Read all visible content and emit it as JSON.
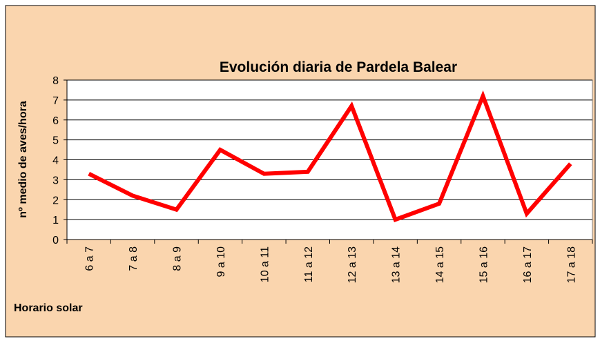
{
  "chart_data": {
    "type": "line",
    "title": "Evolución diaria de Pardela Balear",
    "y_label": "nº medio de aves/hora",
    "x_label": "Horario solar",
    "categories": [
      "6 a 7",
      "7 a 8",
      "8 a 9",
      "9 a 10",
      "10 a 11",
      "11 a 12",
      "12 a 13",
      "13 a 14",
      "14 a 15",
      "15 a 16",
      "16 a 17",
      "17 a 18"
    ],
    "series": [
      {
        "name": null,
        "color": "#ff0000",
        "values": [
          3.3,
          2.2,
          1.5,
          4.5,
          3.3,
          3.4,
          6.7,
          1.0,
          1.8,
          7.2,
          1.3,
          3.8
        ]
      }
    ],
    "ylim": [
      0,
      8
    ],
    "yticks": [
      0,
      1,
      2,
      3,
      4,
      5,
      6,
      7,
      8
    ],
    "grid": true
  }
}
